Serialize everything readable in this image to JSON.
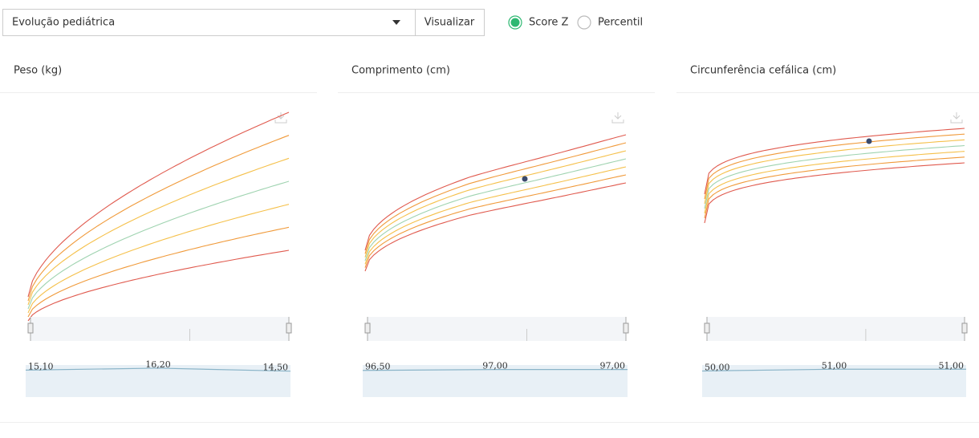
{
  "controls": {
    "select": "Evolução pediátrica",
    "button": "Visualizar",
    "radios": [
      {
        "label": "Score Z",
        "checked": true
      },
      {
        "label": "Percentil",
        "checked": false
      }
    ]
  },
  "panels": [
    {
      "title": "Peso (kg)",
      "chart_data": {
        "type": "line",
        "values": [
          15.1,
          16.2,
          14.5
        ],
        "value_labels": [
          "15,10",
          "16,20",
          "14,50"
        ]
      }
    },
    {
      "title": "Comprimento (cm)",
      "chart_data": {
        "type": "line",
        "values": [
          96.5,
          97,
          97
        ],
        "value_labels": [
          "96,50",
          "97,00",
          "97,00"
        ]
      }
    },
    {
      "title": "Circunferência cefálica (cm)",
      "chart_data": {
        "type": "line",
        "values": [
          50,
          51,
          51
        ],
        "value_labels": [
          "50,00",
          "51,00",
          "51,00"
        ]
      }
    }
  ]
}
